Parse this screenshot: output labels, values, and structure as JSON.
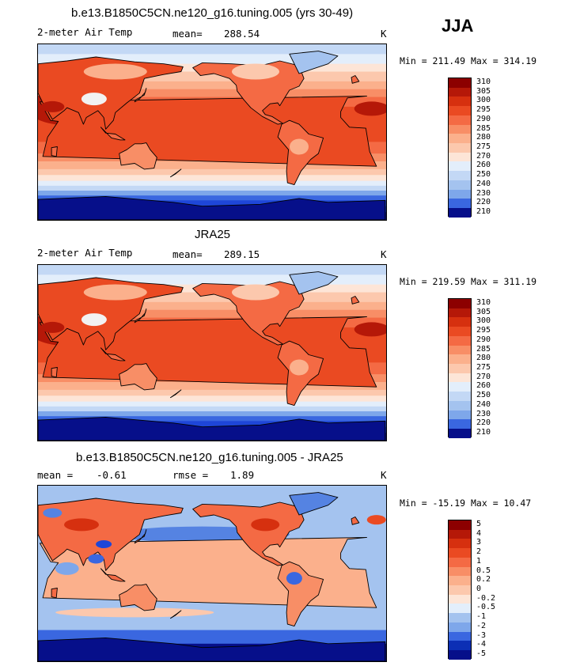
{
  "season": "JJA",
  "colors": {
    "warm": [
      "#fde5d7",
      "#fcc8ad",
      "#fbb08c",
      "#f88e66",
      "#f46a44",
      "#ea4a22",
      "#d6300f",
      "#b51808",
      "#8c0000"
    ],
    "cold": [
      "#e3eefb",
      "#c3d8f5",
      "#a4c3ef",
      "#7ea7ea",
      "#5583e2",
      "#3a67e0",
      "#1e46d8",
      "#0c2fb5",
      "#060f8a"
    ],
    "land": "#7a1a0a",
    "coast": "#000000"
  },
  "panels": [
    {
      "title": "b.e13.B1850C5CN.ne120_g16.tuning.005 (yrs 30-49)",
      "left_label": "2-meter Air Temp",
      "stat_label": "mean=",
      "stat_value": "288.54",
      "units": "K",
      "range_text": "Min = 211.49 Max = 314.19",
      "chart_data": {
        "type": "heatmap",
        "variable": "2-meter Air Temp",
        "mean": 288.54,
        "min": 211.49,
        "max": 314.19,
        "units": "K",
        "colorbar_levels": [
          "310",
          "305",
          "300",
          "295",
          "290",
          "285",
          "280",
          "275",
          "270",
          "260",
          "250",
          "240",
          "230",
          "220",
          "210"
        ]
      }
    },
    {
      "title": "JRA25",
      "left_label": "2-meter Air Temp",
      "stat_label": "mean=",
      "stat_value": "289.15",
      "units": "K",
      "range_text": "Min = 219.59 Max = 311.19",
      "chart_data": {
        "type": "heatmap",
        "variable": "2-meter Air Temp",
        "mean": 289.15,
        "min": 219.59,
        "max": 311.19,
        "units": "K",
        "colorbar_levels": [
          "310",
          "305",
          "300",
          "295",
          "290",
          "285",
          "280",
          "275",
          "270",
          "260",
          "250",
          "240",
          "230",
          "220",
          "210"
        ]
      }
    },
    {
      "title": "b.e13.B1850C5CN.ne120_g16.tuning.005 - JRA25",
      "left_label": "mean =",
      "stat_label": "rmse =",
      "stat_value": "1.89",
      "left_value": "-0.61",
      "units": "K",
      "range_text": "Min = -15.19 Max = 10.47",
      "chart_data": {
        "type": "heatmap",
        "variable": "2-meter Air Temp difference",
        "mean": -0.61,
        "rmse": 1.89,
        "min": -15.19,
        "max": 10.47,
        "units": "K",
        "colorbar_levels": [
          "5",
          "4",
          "3",
          "2",
          "1",
          "0.5",
          "0.2",
          "0",
          "-0.2",
          "-0.5",
          "-1",
          "-2",
          "-3",
          "-4",
          "-5"
        ]
      }
    }
  ]
}
